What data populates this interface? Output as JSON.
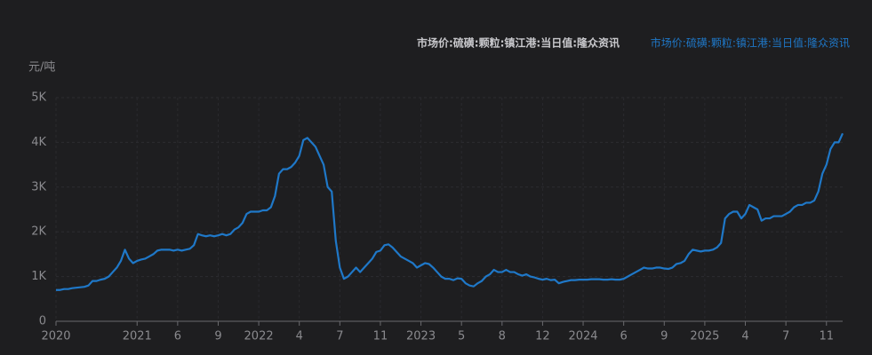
{
  "chart_data": {
    "type": "line",
    "title": "市场价:硫磺:颗粒:镇江港:当日值:隆众资讯",
    "y_unit": "元/吨",
    "categories": [
      "2020",
      null,
      null,
      null,
      null,
      null,
      null,
      null,
      null,
      null,
      null,
      null,
      null,
      null,
      null,
      null,
      null,
      null,
      null,
      null,
      "2021",
      null,
      null,
      null,
      null,
      null,
      null,
      null,
      null,
      null,
      "6",
      null,
      null,
      null,
      null,
      null,
      null,
      null,
      null,
      null,
      "9",
      null,
      null,
      null,
      null,
      null,
      null,
      null,
      null,
      null,
      "2022",
      null,
      null,
      null,
      null,
      null,
      null,
      null,
      null,
      null,
      "4",
      null,
      null,
      null,
      null,
      null,
      null,
      null,
      null,
      null,
      "7",
      null,
      null,
      null,
      null,
      null,
      null,
      null,
      null,
      null,
      "11",
      null,
      null,
      null,
      null,
      null,
      null,
      null,
      null,
      null,
      "2023",
      null,
      null,
      null,
      null,
      null,
      null,
      null,
      null,
      null,
      "5",
      null,
      null,
      null,
      null,
      null,
      null,
      null,
      null,
      null,
      "8",
      null,
      null,
      null,
      null,
      null,
      null,
      null,
      null,
      null,
      "12",
      null,
      null,
      null,
      null,
      null,
      null,
      null,
      null,
      null,
      "2024",
      null,
      null,
      null,
      null,
      null,
      null,
      null,
      null,
      null,
      "6",
      null,
      null,
      null,
      null,
      null,
      null,
      null,
      null,
      null,
      "9",
      null,
      null,
      null,
      null,
      null,
      null,
      null,
      null,
      null,
      "2025",
      null,
      null,
      null,
      null,
      null,
      null,
      null,
      null,
      null,
      "4",
      null,
      null,
      null,
      null,
      null,
      null,
      null,
      null,
      null,
      "7",
      null,
      null,
      null,
      null,
      null,
      null,
      null,
      null,
      null,
      "11",
      null,
      null,
      null,
      null
    ],
    "series": [
      {
        "name": "市场价:硫磺:颗粒:镇江港:当日值:隆众资讯",
        "color": "#1f78c8",
        "values": [
          700,
          700,
          720,
          720,
          740,
          750,
          760,
          770,
          800,
          900,
          900,
          930,
          950,
          1000,
          1100,
          1200,
          1350,
          1600,
          1400,
          1300,
          1350,
          1380,
          1400,
          1450,
          1500,
          1580,
          1600,
          1600,
          1600,
          1580,
          1600,
          1580,
          1600,
          1620,
          1700,
          1950,
          1920,
          1900,
          1920,
          1900,
          1920,
          1950,
          1920,
          1950,
          2050,
          2100,
          2200,
          2400,
          2450,
          2450,
          2450,
          2480,
          2480,
          2550,
          2800,
          3300,
          3400,
          3400,
          3450,
          3550,
          3700,
          4050,
          4100,
          4000,
          3900,
          3700,
          3500,
          3000,
          2900,
          1800,
          1200,
          950,
          1000,
          1100,
          1200,
          1100,
          1200,
          1300,
          1400,
          1550,
          1580,
          1700,
          1720,
          1650,
          1550,
          1450,
          1400,
          1350,
          1300,
          1200,
          1250,
          1300,
          1280,
          1200,
          1100,
          1000,
          950,
          950,
          920,
          960,
          950,
          850,
          800,
          780,
          850,
          900,
          1000,
          1050,
          1150,
          1100,
          1100,
          1150,
          1100,
          1100,
          1050,
          1020,
          1050,
          1000,
          980,
          950,
          930,
          950,
          920,
          930,
          850,
          880,
          900,
          920,
          920,
          930,
          930,
          930,
          940,
          940,
          940,
          930,
          930,
          940,
          930,
          930,
          950,
          1000,
          1050,
          1100,
          1150,
          1200,
          1180,
          1180,
          1200,
          1200,
          1180,
          1170,
          1200,
          1280,
          1300,
          1350,
          1500,
          1600,
          1580,
          1560,
          1580,
          1580,
          1600,
          1650,
          1750,
          2300,
          2400,
          2450,
          2450,
          2300,
          2400,
          2600,
          2550,
          2500,
          2250,
          2300,
          2300,
          2350,
          2350,
          2350,
          2400,
          2450,
          2550,
          2600,
          2600,
          2650,
          2650,
          2700,
          2900,
          3300,
          3500,
          3850,
          4000,
          4000,
          4200
        ]
      }
    ],
    "ylim": [
      0,
      5000
    ],
    "yticks": [
      0,
      {
        "value": 1000,
        "label": "1K"
      },
      {
        "value": 2000,
        "label": "2K"
      },
      {
        "value": 3000,
        "label": "3K"
      },
      {
        "value": 4000,
        "label": "4K"
      },
      {
        "value": 5000,
        "label": "5K"
      }
    ],
    "grid": true
  }
}
